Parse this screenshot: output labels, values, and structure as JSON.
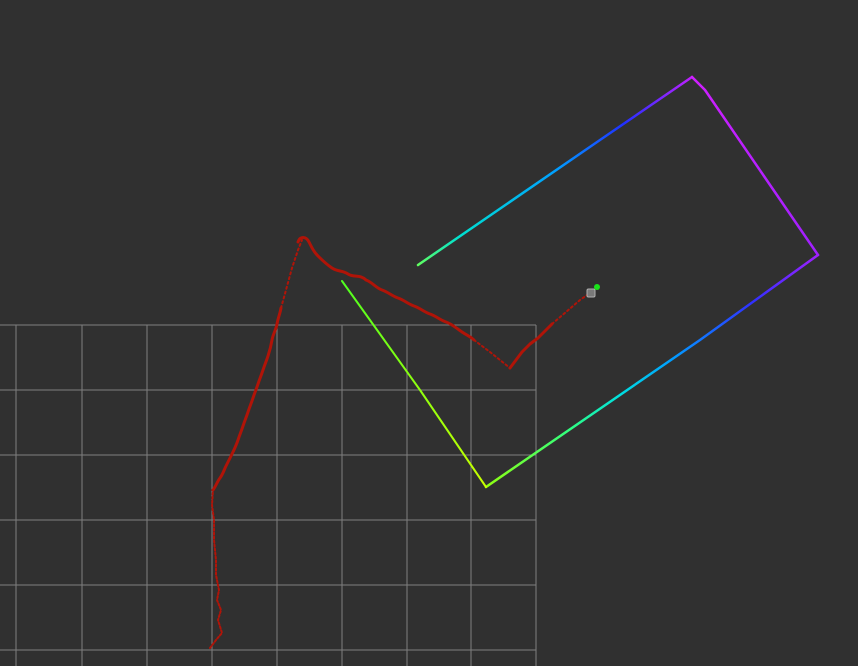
{
  "view": {
    "type": "3d-render-viewport",
    "background": "#303030",
    "grid_color": "#a0a0a0"
  },
  "trajectory": {
    "color": "#b01408",
    "style": "dotted-wobbly-path"
  },
  "laser_scan": {
    "colormap": "rainbow",
    "colors": [
      "#7fff00",
      "#b8ff00",
      "#00e0e0",
      "#1a40ff",
      "#b000ff",
      "#e020ff"
    ]
  },
  "robot": {
    "marker_color": "#19e219",
    "body_color": "#808080"
  }
}
